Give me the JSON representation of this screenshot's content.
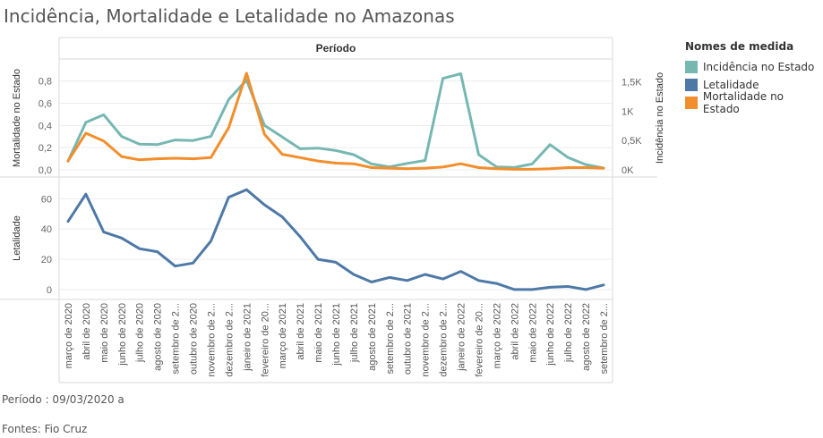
{
  "title": "Incidência, Mortalidade e Letalidade no Amazonas",
  "header_label": "Período",
  "footnote_period": "Período : 09/03/2020 a",
  "footnote_sources": "Fontes: Fio Cruz",
  "legend": {
    "title": "Nomes de medida",
    "items": [
      {
        "label": "Incidência no Estado",
        "color": "#76b7b2"
      },
      {
        "label": "Letalidade",
        "color": "#4e79a7"
      },
      {
        "label": "Mortalidade no Estado",
        "color": "#f28e2b"
      }
    ]
  },
  "chart_data": {
    "type": "line",
    "categories": [
      "março de 2020",
      "abril de 2020",
      "maio de 2020",
      "junho de 2020",
      "julho de 2020",
      "agosto de 2020",
      "setembro de 2...",
      "outubro de 2020",
      "novembro de 2...",
      "dezembro de 2...",
      "janeiro de 2021",
      "fevereiro de 20...",
      "março de 2021",
      "abril de 2021",
      "maio de 2021",
      "junho de 2021",
      "julho de 2021",
      "agosto de 2021",
      "setembro de 2...",
      "outubro de 2021",
      "novembro de 2...",
      "dezembro de 2...",
      "janeiro de 2022",
      "fevereiro de 20...",
      "março de 2022",
      "abril de 2022",
      "maio de 2022",
      "junho de 2022",
      "julho de 2022",
      "agosto de 2022",
      "setembro de 2..."
    ],
    "top_panel": {
      "left_axis": {
        "label": "Mortalidade no Estado",
        "ylim": [
          0,
          0.95
        ],
        "ticks": [
          "0,0",
          "0,2",
          "0,4",
          "0,6",
          "0,8"
        ],
        "tick_values": [
          0,
          0.2,
          0.4,
          0.6,
          0.8
        ]
      },
      "right_axis": {
        "label": "Incidência no Estado",
        "ylim": [
          0,
          1800
        ],
        "ticks": [
          "0K",
          "0,5K",
          "1K",
          "1,5K"
        ],
        "tick_values": [
          0,
          500,
          1000,
          1500
        ]
      },
      "series": [
        {
          "name": "Incidência no Estado",
          "axis": "right",
          "color": "#76b7b2",
          "values": [
            150,
            810,
            940,
            570,
            440,
            430,
            510,
            500,
            570,
            1200,
            1530,
            760,
            560,
            360,
            370,
            330,
            260,
            100,
            50,
            110,
            160,
            1560,
            1640,
            260,
            50,
            40,
            100,
            430,
            210,
            90,
            30
          ]
        },
        {
          "name": "Mortalidade no Estado",
          "axis": "left",
          "color": "#f28e2b",
          "values": [
            0.08,
            0.33,
            0.26,
            0.12,
            0.09,
            0.1,
            0.105,
            0.1,
            0.11,
            0.38,
            0.87,
            0.32,
            0.14,
            0.11,
            0.08,
            0.06,
            0.055,
            0.02,
            0.015,
            0.01,
            0.015,
            0.025,
            0.055,
            0.02,
            0.01,
            0.005,
            0.005,
            0.01,
            0.02,
            0.02,
            0.015
          ]
        }
      ]
    },
    "bottom_panel": {
      "axis": {
        "label": "Letalidade",
        "ylim": [
          -3,
          72
        ],
        "ticks": [
          "0",
          "20",
          "40",
          "60"
        ],
        "tick_values": [
          0,
          20,
          40,
          60
        ]
      },
      "series": [
        {
          "name": "Letalidade",
          "color": "#4e79a7",
          "values": [
            45,
            63,
            38,
            34,
            27,
            25,
            15.5,
            17.5,
            32,
            61,
            66,
            56,
            48,
            35,
            20,
            18,
            10,
            5,
            8,
            6,
            10,
            7,
            12,
            6,
            4,
            0,
            0,
            1.5,
            2,
            0,
            3
          ]
        }
      ]
    }
  }
}
